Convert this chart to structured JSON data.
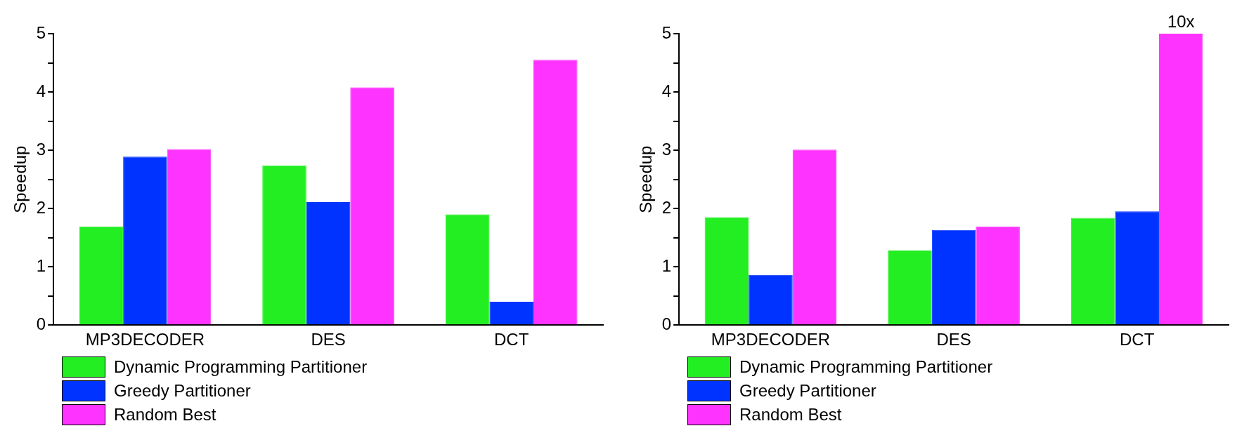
{
  "chart_data": [
    {
      "type": "bar",
      "ylabel": "Speedup",
      "categories": [
        "MP3DECODER",
        "DES",
        "DCT"
      ],
      "ylim": [
        0,
        5
      ],
      "yticks": [
        0,
        {
          "value": 0.5,
          "label": null
        },
        1,
        {
          "value": 1.5,
          "label": null
        },
        2,
        {
          "value": 2.5,
          "label": null
        },
        3,
        {
          "value": 3.5,
          "label": null
        },
        4,
        {
          "value": 4.5,
          "label": null
        },
        5
      ],
      "grid": false,
      "legend": "bottom",
      "series": [
        {
          "name": "Dynamic Programming Partitioner",
          "color": "#22ee22",
          "values": [
            1.69,
            2.74,
            1.9
          ]
        },
        {
          "name": "Greedy Partitioner",
          "color": "#0033ff",
          "values": [
            2.89,
            2.11,
            0.4
          ]
        },
        {
          "name": "Random Best",
          "color": "#ff33ff",
          "values": [
            3.02,
            4.08,
            4.55
          ]
        }
      ]
    },
    {
      "type": "bar",
      "ylabel": "Speedup",
      "categories": [
        "MP3DECODER",
        "DES",
        "DCT"
      ],
      "ylim": [
        0,
        5
      ],
      "yticks": [
        0,
        {
          "value": 0.5,
          "label": null
        },
        1,
        {
          "value": 1.5,
          "label": null
        },
        2,
        {
          "value": 2.5,
          "label": null
        },
        3,
        {
          "value": 3.5,
          "label": null
        },
        4,
        {
          "value": 4.5,
          "label": null
        },
        5
      ],
      "grid": false,
      "legend": "bottom",
      "annotations": [
        "10x"
      ],
      "series": [
        {
          "name": "Dynamic Programming Partitioner",
          "color": "#22ee22",
          "values": [
            1.85,
            1.28,
            1.84
          ]
        },
        {
          "name": "Greedy Partitioner",
          "color": "#0033ff",
          "values": [
            0.86,
            1.63,
            1.95
          ]
        },
        {
          "name": "Random Best",
          "color": "#ff33ff",
          "values": [
            3.01,
            1.69,
            5
          ]
        }
      ]
    }
  ]
}
